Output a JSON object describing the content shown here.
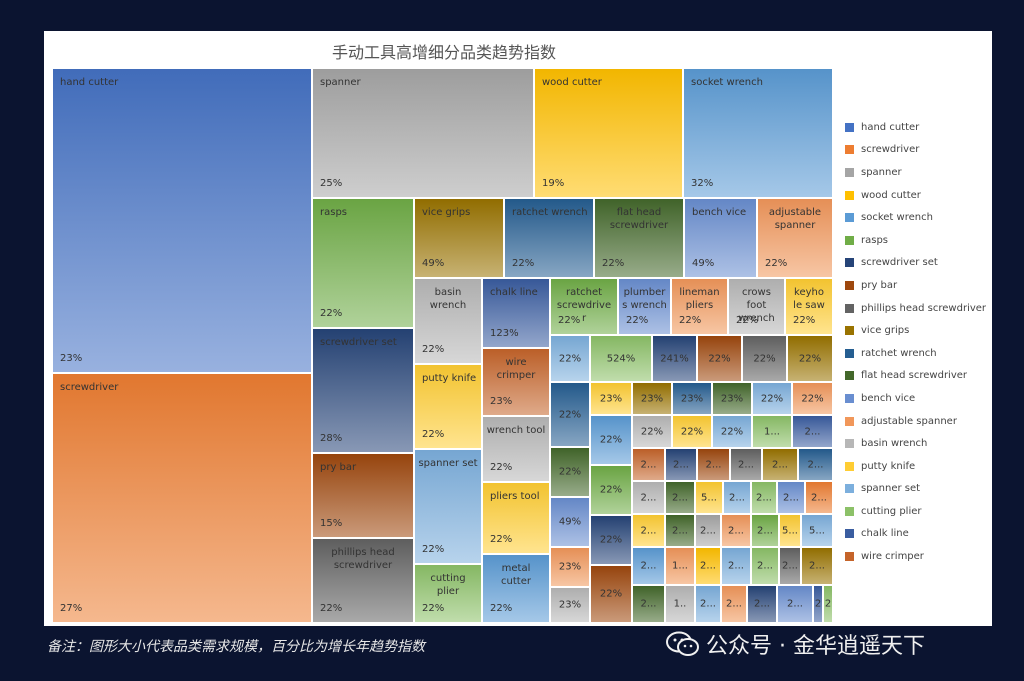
{
  "chart_data": {
    "type": "treemap",
    "title": "手动工具高增细分品类趋势指数",
    "items": [
      {
        "name": "hand cutter",
        "value": "23%"
      },
      {
        "name": "screwdriver",
        "value": "27%"
      },
      {
        "name": "spanner",
        "value": "25%"
      },
      {
        "name": "wood cutter",
        "value": "19%"
      },
      {
        "name": "socket wrench",
        "value": "32%"
      },
      {
        "name": "rasps",
        "value": "22%"
      },
      {
        "name": "screwdriver set",
        "value": "28%"
      },
      {
        "name": "pry bar",
        "value": "15%"
      },
      {
        "name": "phillips head screwdriver",
        "value": "22%"
      },
      {
        "name": "vice grips",
        "value": "49%"
      },
      {
        "name": "ratchet wrench",
        "value": "22%"
      },
      {
        "name": "flat head screwdriver",
        "value": "22%"
      },
      {
        "name": "bench vice",
        "value": "49%"
      },
      {
        "name": "adjustable spanner",
        "value": "22%"
      },
      {
        "name": "basin wrench",
        "value": "22%"
      },
      {
        "name": "putty knife",
        "value": "22%"
      },
      {
        "name": "spanner set",
        "value": "22%"
      },
      {
        "name": "cutting plier",
        "value": "22%"
      },
      {
        "name": "chalk line",
        "value": "123%"
      },
      {
        "name": "wire crimper",
        "value": "23%"
      },
      {
        "name": "wrench tool",
        "value": "22%"
      },
      {
        "name": "pliers tool",
        "value": "22%"
      },
      {
        "name": "metal cutter",
        "value": "22%"
      },
      {
        "name": "ratchet screwdriver",
        "value": "22%"
      },
      {
        "name": "plumbers wrench",
        "value": "22%"
      },
      {
        "name": "lineman pliers",
        "value": "22%"
      },
      {
        "name": "crows foot wrench",
        "value": "22%"
      },
      {
        "name": "keyhole saw",
        "value": "22%"
      }
    ],
    "legend": [
      "hand cutter",
      "screwdriver",
      "spanner",
      "wood cutter",
      "socket wrench",
      "rasps",
      "screwdriver set",
      "pry bar",
      "phillips head screwdriver",
      "vice grips",
      "ratchet wrench",
      "flat head screwdriver",
      "bench vice",
      "adjustable spanner",
      "basin wrench",
      "putty knife",
      "spanner set",
      "cutting plier",
      "chalk line",
      "wire crimper"
    ],
    "legend_position": "right"
  },
  "palette": [
    "#4472c4",
    "#ed7d31",
    "#a5a5a5",
    "#ffc000",
    "#5b9bd5",
    "#70ad47",
    "#264478",
    "#9e480e",
    "#636363",
    "#997300",
    "#255e91",
    "#43682b",
    "#698ed0",
    "#f1975a",
    "#b7b7b7",
    "#ffcd33",
    "#7cafdd",
    "#8cc168",
    "#3a5da0",
    "#c5642a"
  ],
  "labels": {
    "ratchet_screwdriver": "ratchet screwdrive r",
    "plumbers_wrench": "plumber s wrench",
    "crows_foot_wrench": "crows foot wrench",
    "keyhole_saw": "keyho le saw"
  },
  "extra_values": [
    "524%",
    "241%",
    "2...",
    "5...",
    "1...",
    "1..",
    "2"
  ],
  "footnote": "备注：图形大小代表品类需求规模，百分比为增长年趋势指数",
  "watermark": "公众号 · 金华逍遥天下"
}
